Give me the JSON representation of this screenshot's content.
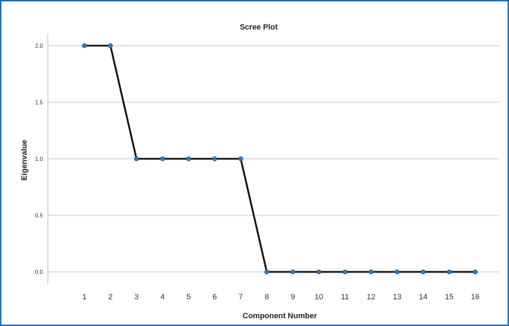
{
  "chart_data": {
    "type": "line",
    "title": "Scree Plot",
    "xlabel": "Component Number",
    "ylabel": "Eigenvalue",
    "x": [
      1,
      2,
      3,
      4,
      5,
      6,
      7,
      8,
      9,
      10,
      11,
      12,
      13,
      14,
      15,
      16
    ],
    "y": [
      2.0,
      2.0,
      1.0,
      1.0,
      1.0,
      1.0,
      1.0,
      0.0,
      0.0,
      0.0,
      0.0,
      0.0,
      0.0,
      0.0,
      0.0,
      0.0
    ],
    "x_ticks": [
      "1",
      "2",
      "3",
      "4",
      "5",
      "6",
      "7",
      "8",
      "9",
      "10",
      "11",
      "12",
      "13",
      "14",
      "15",
      "16"
    ],
    "y_ticks": [
      "0.0",
      "0.5",
      "1.0",
      "1.5",
      "2.0"
    ],
    "ylim": [
      0,
      2
    ],
    "grid": true,
    "colors": {
      "line": "#111111",
      "marker_fill": "#2f7fc1",
      "marker_stroke": "#1b4e7a",
      "grid": "#d9d9d9",
      "frame_border": "#1f6fb2"
    }
  }
}
